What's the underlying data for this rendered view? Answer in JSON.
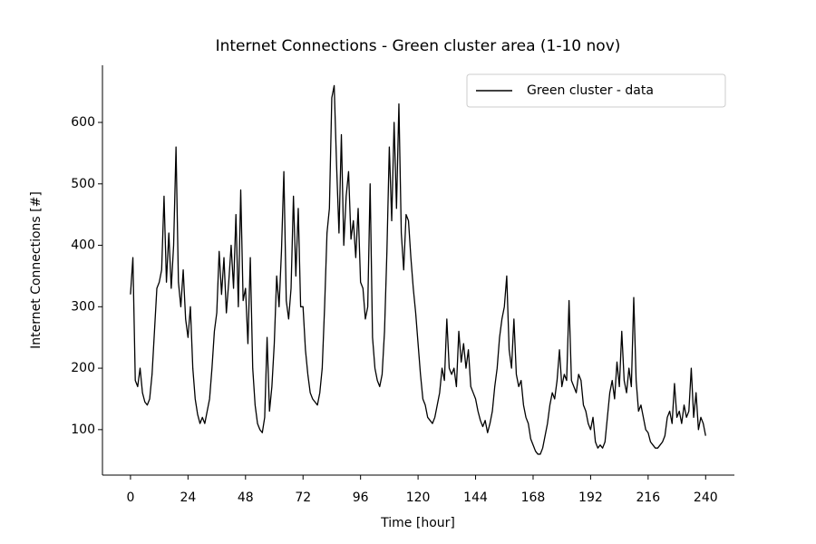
{
  "chart_data": {
    "type": "line",
    "title": "Internet Connections - Green cluster area (1-10 nov)",
    "xlabel": "Time [hour]",
    "ylabel": "Internet Connections [#]",
    "legend": "upper right",
    "grid": false,
    "x": [
      0,
      1,
      2,
      3,
      4,
      5,
      6,
      7,
      8,
      9,
      10,
      11,
      12,
      13,
      14,
      15,
      16,
      17,
      18,
      19,
      20,
      21,
      22,
      23,
      24,
      25,
      26,
      27,
      28,
      29,
      30,
      31,
      32,
      33,
      34,
      35,
      36,
      37,
      38,
      39,
      40,
      41,
      42,
      43,
      44,
      45,
      46,
      47,
      48,
      49,
      50,
      51,
      52,
      53,
      54,
      55,
      56,
      57,
      58,
      59,
      60,
      61,
      62,
      63,
      64,
      65,
      66,
      67,
      68,
      69,
      70,
      71,
      72,
      73,
      74,
      75,
      76,
      77,
      78,
      79,
      80,
      81,
      82,
      83,
      84,
      85,
      86,
      87,
      88,
      89,
      90,
      91,
      92,
      93,
      94,
      95,
      96,
      97,
      98,
      99,
      100,
      101,
      102,
      103,
      104,
      105,
      106,
      107,
      108,
      109,
      110,
      111,
      112,
      113,
      114,
      115,
      116,
      117,
      118,
      119,
      120,
      121,
      122,
      123,
      124,
      125,
      126,
      127,
      128,
      129,
      130,
      131,
      132,
      133,
      134,
      135,
      136,
      137,
      138,
      139,
      140,
      141,
      142,
      143,
      144,
      145,
      146,
      147,
      148,
      149,
      150,
      151,
      152,
      153,
      154,
      155,
      156,
      157,
      158,
      159,
      160,
      161,
      162,
      163,
      164,
      165,
      166,
      167,
      168,
      169,
      170,
      171,
      172,
      173,
      174,
      175,
      176,
      177,
      178,
      179,
      180,
      181,
      182,
      183,
      184,
      185,
      186,
      187,
      188,
      189,
      190,
      191,
      192,
      193,
      194,
      195,
      196,
      197,
      198,
      199,
      200,
      201,
      202,
      203,
      204,
      205,
      206,
      207,
      208,
      209,
      210,
      211,
      212,
      213,
      214,
      215,
      216,
      217,
      218,
      219,
      220,
      221,
      222,
      223,
      224,
      225,
      226,
      227,
      228,
      229,
      230,
      231,
      232,
      233,
      234,
      235,
      236,
      237,
      238,
      239,
      240
    ],
    "series": [
      {
        "name": "Green cluster - data",
        "color": "#000000",
        "values": [
          320,
          380,
          180,
          170,
          200,
          160,
          145,
          140,
          150,
          190,
          260,
          330,
          340,
          360,
          480,
          340,
          420,
          330,
          400,
          560,
          340,
          300,
          360,
          280,
          250,
          300,
          200,
          150,
          125,
          110,
          120,
          110,
          130,
          150,
          200,
          260,
          290,
          390,
          320,
          380,
          290,
          340,
          400,
          330,
          450,
          300,
          490,
          310,
          330,
          240,
          380,
          200,
          140,
          110,
          100,
          95,
          120,
          250,
          130,
          170,
          240,
          350,
          300,
          390,
          520,
          310,
          280,
          330,
          480,
          350,
          460,
          300,
          300,
          230,
          190,
          160,
          150,
          145,
          140,
          160,
          200,
          300,
          420,
          460,
          640,
          660,
          530,
          420,
          580,
          400,
          480,
          520,
          410,
          440,
          380,
          460,
          340,
          330,
          280,
          300,
          500,
          250,
          200,
          180,
          170,
          190,
          260,
          390,
          560,
          440,
          600,
          460,
          630,
          420,
          360,
          450,
          440,
          380,
          330,
          290,
          240,
          190,
          150,
          140,
          120,
          115,
          110,
          120,
          140,
          160,
          200,
          180,
          280,
          200,
          190,
          200,
          170,
          260,
          210,
          240,
          200,
          230,
          170,
          160,
          150,
          130,
          115,
          105,
          115,
          95,
          110,
          130,
          170,
          200,
          250,
          280,
          300,
          350,
          230,
          200,
          280,
          190,
          170,
          180,
          140,
          120,
          110,
          85,
          75,
          65,
          60,
          60,
          70,
          90,
          110,
          140,
          160,
          150,
          180,
          230,
          170,
          190,
          180,
          310,
          180,
          170,
          160,
          190,
          180,
          140,
          130,
          110,
          100,
          120,
          80,
          70,
          75,
          70,
          80,
          120,
          160,
          180,
          150,
          210,
          170,
          260,
          180,
          160,
          200,
          170,
          315,
          180,
          130,
          140,
          120,
          100,
          95,
          80,
          75,
          70,
          70,
          75,
          80,
          90,
          120,
          130,
          110,
          175,
          120,
          130,
          110,
          140,
          120,
          130,
          200,
          120,
          160,
          100,
          120,
          110,
          90
        ]
      }
    ],
    "xlim": [
      -11.7,
      252
    ],
    "ylim": [
      26,
      693
    ],
    "xticks": [
      0,
      24,
      48,
      72,
      96,
      120,
      144,
      168,
      192,
      216,
      240
    ],
    "yticks": [
      100,
      200,
      300,
      400,
      500,
      600
    ]
  }
}
